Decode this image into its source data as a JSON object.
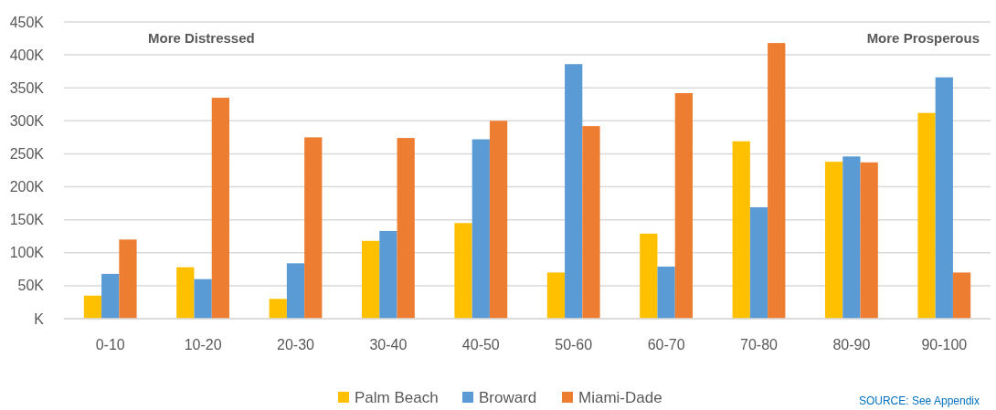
{
  "chart_data": {
    "type": "bar",
    "categories": [
      "0-10",
      "10-20",
      "20-30",
      "30-40",
      "40-50",
      "50-60",
      "60-70",
      "70-80",
      "80-90",
      "90-100"
    ],
    "series": [
      {
        "name": "Palm Beach",
        "color": "#ffc000",
        "values": [
          35000,
          78000,
          30000,
          118000,
          145000,
          70000,
          129000,
          269000,
          238000,
          312000
        ]
      },
      {
        "name": "Broward",
        "color": "#5b9bd5",
        "values": [
          68000,
          60000,
          84000,
          133000,
          272000,
          386000,
          79000,
          169000,
          246000,
          366000
        ]
      },
      {
        "name": "Miami-Dade",
        "color": "#ed7d31",
        "values": [
          120000,
          335000,
          275000,
          274000,
          300000,
          292000,
          342000,
          418000,
          237000,
          70000
        ]
      }
    ],
    "ylim": [
      0,
      450000
    ],
    "yticks": [
      {
        "value": 0,
        "label": "K"
      },
      {
        "value": 50000,
        "label": "50K"
      },
      {
        "value": 100000,
        "label": "100K"
      },
      {
        "value": 150000,
        "label": "150K"
      },
      {
        "value": 200000,
        "label": "200K"
      },
      {
        "value": 250000,
        "label": "250K"
      },
      {
        "value": 300000,
        "label": "300K"
      },
      {
        "value": 350000,
        "label": "350K"
      },
      {
        "value": 400000,
        "label": "400K"
      },
      {
        "value": 450000,
        "label": "450K"
      }
    ],
    "grid": "y",
    "legend": "bottom",
    "annotations": [
      "More Distressed",
      "More Prosperous",
      "SOURCE: See Appendix"
    ]
  }
}
